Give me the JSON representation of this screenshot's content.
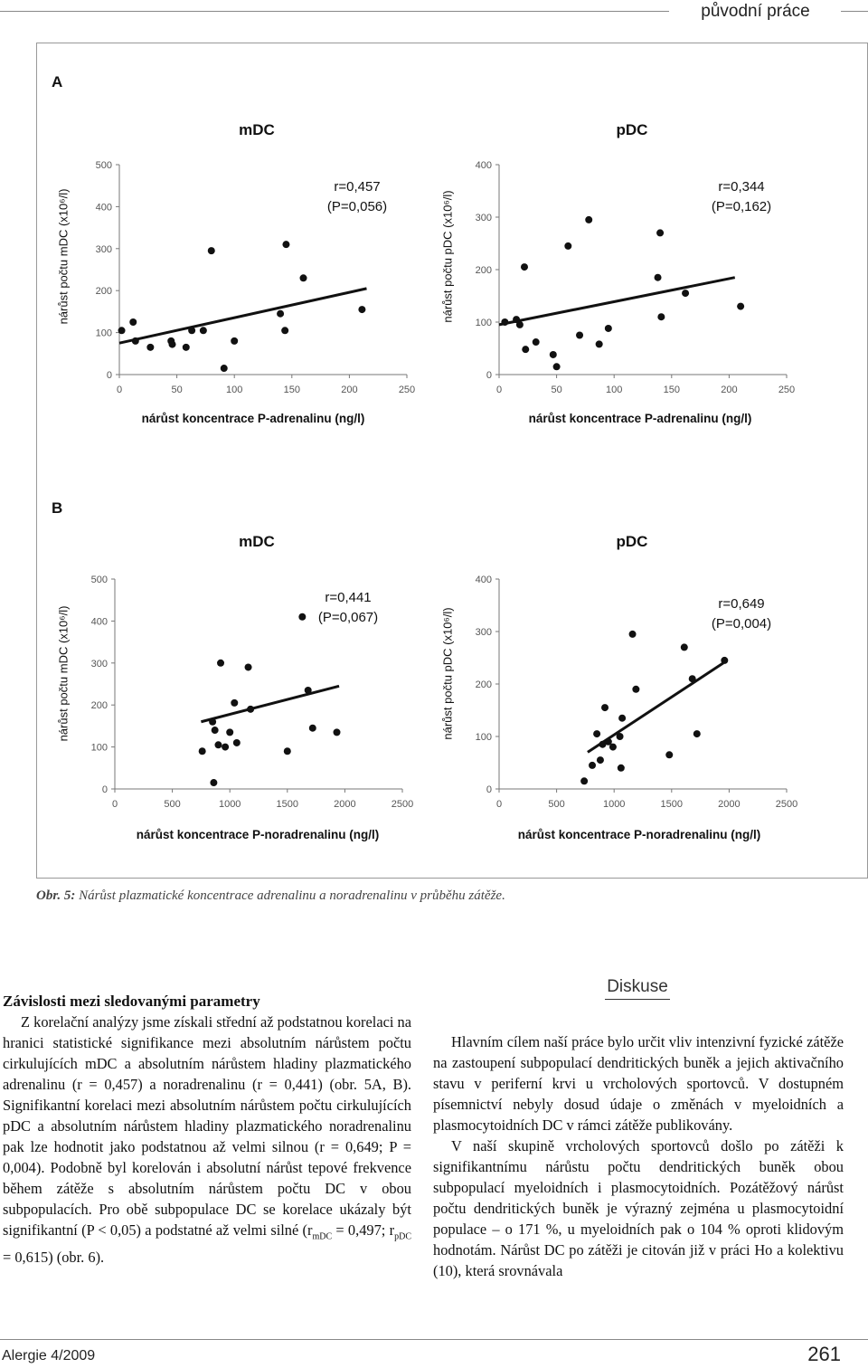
{
  "header": {
    "section": "původní práce"
  },
  "figure": {
    "panels": [
      {
        "label": "A",
        "charts": [
          {
            "subtitle": "mDC",
            "ylabel": "nárůst počtu mDC (x10⁶/l)",
            "xlabel": "nárůst koncentrace P-adrenalinu (ng/l)",
            "stat_r": "r=0,457",
            "stat_p": "(P=0,056)"
          },
          {
            "subtitle": "pDC",
            "ylabel": "nárůst počtu pDC (x10⁶/l)",
            "xlabel": "nárůst koncentrace P-adrenalinu (ng/l)",
            "stat_r": "r=0,344",
            "stat_p": "(P=0,162)"
          }
        ]
      },
      {
        "label": "B",
        "charts": [
          {
            "subtitle": "mDC",
            "ylabel": "nárůst počtu mDC (x10⁶/l)",
            "xlabel": "nárůst koncentrace P-noradrenalinu (ng/l)",
            "stat_r": "r=0,441",
            "stat_p": "(P=0,067)"
          },
          {
            "subtitle": "pDC",
            "ylabel": "nárůst počtu pDC (x10⁶/l)",
            "xlabel": "nárůst koncentrace P-noradrenalinu (ng/l)",
            "stat_r": "r=0,649",
            "stat_p": "(P=0,004)"
          }
        ]
      }
    ],
    "caption_label": "Obr. 5:",
    "caption_text": "Nárůst plazmatické koncentrace adrenalinu a noradrenalinu v průběhu zátěže."
  },
  "chart_data": [
    {
      "type": "scatter",
      "title": "mDC",
      "xlabel": "nárůst koncentrace P-adrenalinu (ng/l)",
      "ylabel": "nárůst počtu mDC (x10⁶/l)",
      "xlim": [
        0,
        250
      ],
      "ylim": [
        0,
        500
      ],
      "xticks": [
        "0",
        "50",
        "100",
        "150",
        "200",
        "250"
      ],
      "yticks": [
        "0",
        "100",
        "200",
        "300",
        "400",
        "500"
      ],
      "points": [
        [
          2,
          105
        ],
        [
          12,
          125
        ],
        [
          14,
          80
        ],
        [
          27,
          65
        ],
        [
          45,
          80
        ],
        [
          46,
          72
        ],
        [
          58,
          65
        ],
        [
          63,
          105
        ],
        [
          73,
          105
        ],
        [
          80,
          295
        ],
        [
          91,
          15
        ],
        [
          100,
          80
        ],
        [
          140,
          145
        ],
        [
          144,
          105
        ],
        [
          145,
          310
        ],
        [
          160,
          230
        ],
        [
          211,
          155
        ]
      ],
      "trendline": [
        [
          0,
          75
        ],
        [
          215,
          205
        ]
      ]
    },
    {
      "type": "scatter",
      "title": "pDC",
      "xlabel": "nárůst koncentrace P-adrenalinu (ng/l)",
      "ylabel": "nárůst počtu pDC (x10⁶/l)",
      "xlim": [
        0,
        250
      ],
      "ylim": [
        0,
        400
      ],
      "xticks": [
        "0",
        "50",
        "100",
        "150",
        "200",
        "250"
      ],
      "yticks": [
        "0",
        "100",
        "200",
        "300",
        "400"
      ],
      "points": [
        [
          5,
          100
        ],
        [
          15,
          105
        ],
        [
          18,
          95
        ],
        [
          22,
          205
        ],
        [
          23,
          48
        ],
        [
          32,
          62
        ],
        [
          47,
          38
        ],
        [
          50,
          15
        ],
        [
          60,
          245
        ],
        [
          70,
          75
        ],
        [
          78,
          295
        ],
        [
          87,
          58
        ],
        [
          95,
          88
        ],
        [
          138,
          185
        ],
        [
          140,
          270
        ],
        [
          141,
          110
        ],
        [
          162,
          155
        ],
        [
          210,
          130
        ]
      ],
      "trendline": [
        [
          0,
          95
        ],
        [
          205,
          185
        ]
      ]
    },
    {
      "type": "scatter",
      "title": "mDC",
      "xlabel": "nárůst koncentrace P-noradrenalinu (ng/l)",
      "ylabel": "nárůst počtu mDC (x10⁶/l)",
      "xlim": [
        0,
        2500
      ],
      "ylim": [
        0,
        500
      ],
      "xticks": [
        "0",
        "500",
        "1000",
        "1500",
        "2000",
        "2500"
      ],
      "yticks": [
        "0",
        "100",
        "200",
        "300",
        "400",
        "500"
      ],
      "points": [
        [
          760,
          90
        ],
        [
          850,
          160
        ],
        [
          860,
          15
        ],
        [
          870,
          140
        ],
        [
          900,
          105
        ],
        [
          920,
          300
        ],
        [
          960,
          100
        ],
        [
          1000,
          135
        ],
        [
          1040,
          205
        ],
        [
          1060,
          110
        ],
        [
          1160,
          290
        ],
        [
          1180,
          190
        ],
        [
          1500,
          90
        ],
        [
          1630,
          410
        ],
        [
          1680,
          235
        ],
        [
          1720,
          145
        ],
        [
          1930,
          135
        ]
      ],
      "trendline": [
        [
          750,
          160
        ],
        [
          1950,
          245
        ]
      ]
    },
    {
      "type": "scatter",
      "title": "pDC",
      "xlabel": "nárůst koncentrace P-noradrenalinu (ng/l)",
      "ylabel": "nárůst počtu pDC (x10⁶/l)",
      "xlim": [
        0,
        2500
      ],
      "ylim": [
        0,
        400
      ],
      "xticks": [
        "0",
        "500",
        "1000",
        "1500",
        "2000",
        "2500"
      ],
      "yticks": [
        "0",
        "100",
        "200",
        "300",
        "400"
      ],
      "points": [
        [
          740,
          15
        ],
        [
          810,
          45
        ],
        [
          850,
          105
        ],
        [
          880,
          55
        ],
        [
          900,
          85
        ],
        [
          920,
          155
        ],
        [
          950,
          90
        ],
        [
          990,
          80
        ],
        [
          1050,
          100
        ],
        [
          1060,
          40
        ],
        [
          1070,
          135
        ],
        [
          1160,
          295
        ],
        [
          1190,
          190
        ],
        [
          1480,
          65
        ],
        [
          1610,
          270
        ],
        [
          1680,
          210
        ],
        [
          1720,
          105
        ],
        [
          1960,
          245
        ]
      ],
      "trendline": [
        [
          770,
          70
        ],
        [
          1950,
          240
        ]
      ]
    }
  ],
  "left_column": {
    "heading": "Závislosti mezi sledovanými parametry",
    "text_1": "Z korelační analýzy jsme získali střední až podstatnou korelaci na hranici statistické signifikance mezi absolutním nárůstem počtu cirkulujících mDC a absolutním nárůstem hladiny plazmatického adrenalinu (r = 0,457) a noradrenalinu (r = 0,441) (obr. 5A, B). Signifikantní korelaci mezi absolutním nárůstem počtu cirkulujících pDC a absolutním nárůstem hladiny plazmatického noradrenalinu pak lze hodnotit jako podstatnou až velmi silnou (r = 0,649; P = 0,004). Podobně byl korelován i absolutní nárůst tepové frekvence během zátěže s absolutním nárůstem počtu DC v obou subpopulacích. Pro obě subpopulace DC se korelace ukázaly být signifikantní (P < 0,05) a podstatné až velmi silné (r",
    "sub_mdc": "mDC",
    "text_2": " = 0,497; r",
    "sub_pdc": "pDC",
    "text_3": " = 0,615) (obr. 6)."
  },
  "right_column": {
    "heading": "Diskuse",
    "para_1": "Hlavním cílem naší práce bylo určit vliv intenzivní fyzické zátěže na zastoupení subpopulací dendritických buněk a jejich aktivačního stavu v periferní krvi u vrcholových sportovců. V dostupném písemnictví nebyly dosud údaje o změnách v myeloidních a plasmocytoidních DC v rámci zátěže publikovány.",
    "para_2": "V naší skupině vrcholových sportovců došlo po zátěži k signifikantnímu nárůstu počtu dendritických buněk obou subpopulací myeloidních i plasmocytoidních. Pozátěžový nárůst počtu dendritických buněk je výrazný zejména u plasmocytoidní populace – o 171 %, u myeloidních pak o 104 % oproti klidovým hodnotám. Nárůst DC po zátěži je citován již v práci Ho a kolektivu (10), která srovnávala"
  },
  "footer": {
    "journal": "Alergie 4/2009",
    "page": "261"
  }
}
